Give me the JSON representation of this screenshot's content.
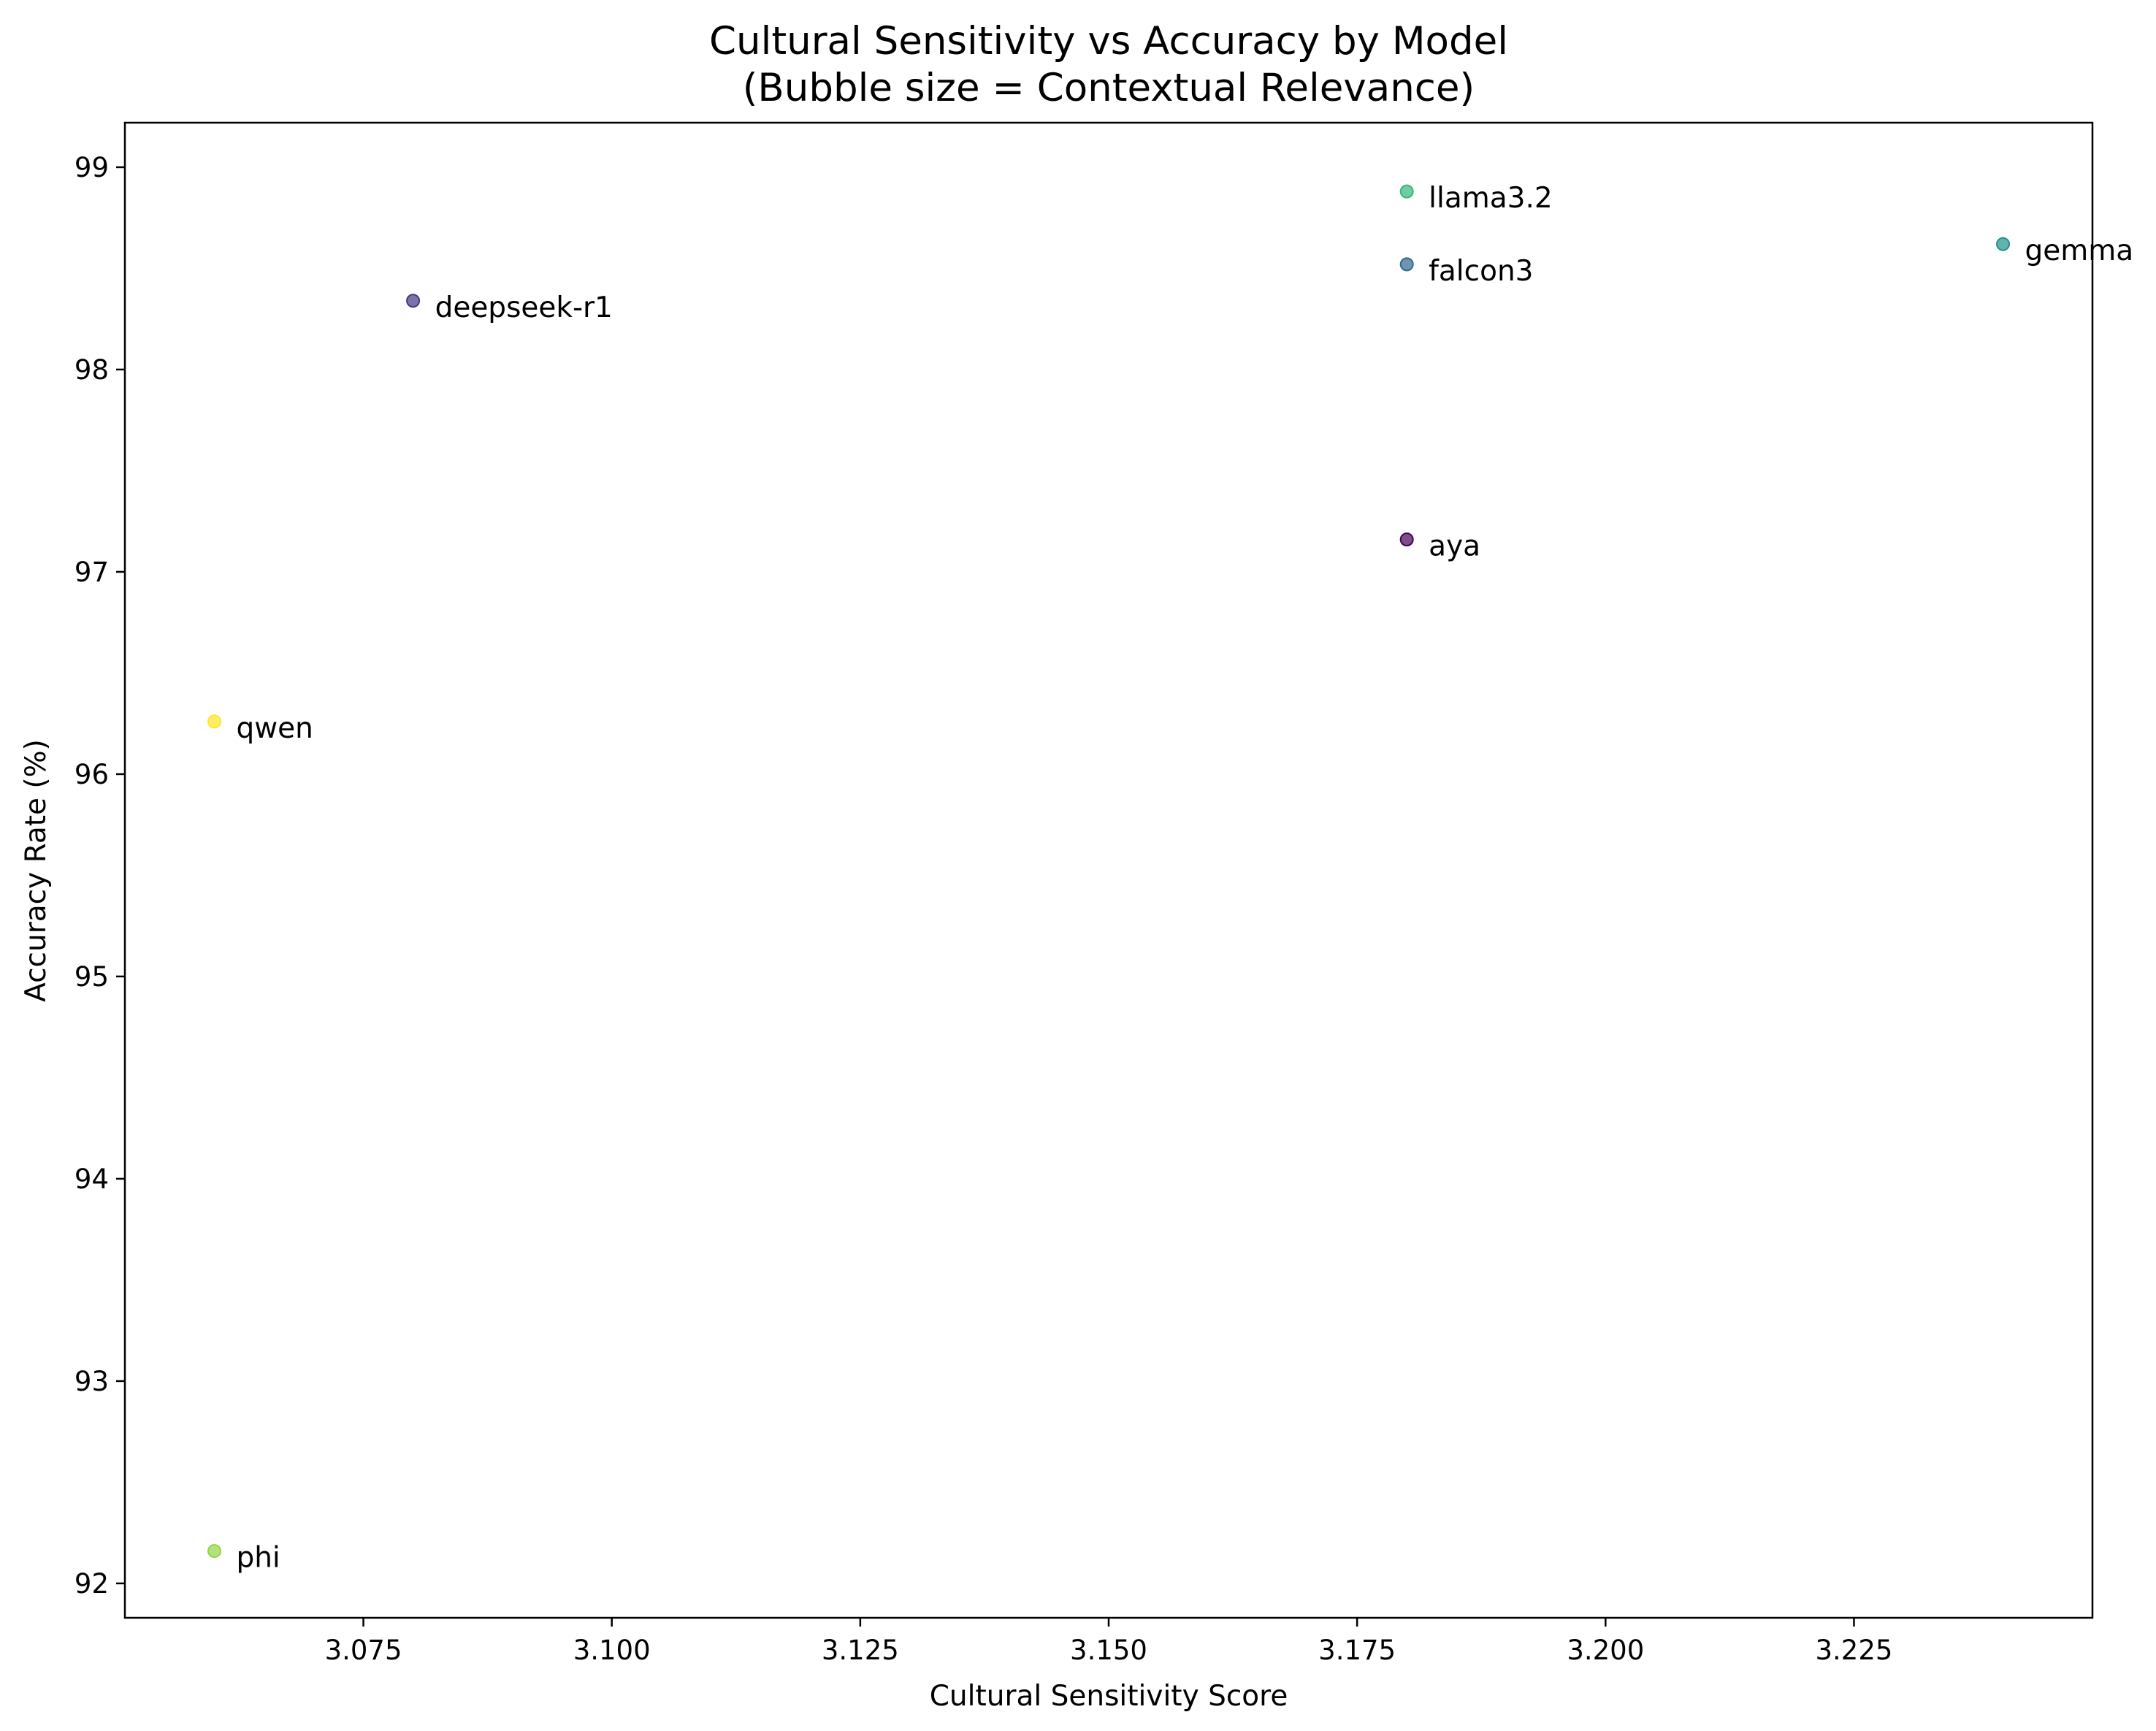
{
  "chart_data": {
    "type": "scatter",
    "title": "Cultural Sensitivity vs Accuracy by Model",
    "subtitle": "(Bubble size = Contextual Relevance)",
    "xlabel": "Cultural Sensitivity Score",
    "ylabel": "Accuracy Rate (%)",
    "xlim": [
      3.051,
      3.249
    ],
    "ylim": [
      91.83,
      99.22
    ],
    "xticks": [
      "3.075",
      "3.100",
      "3.125",
      "3.150",
      "3.175",
      "3.200",
      "3.225"
    ],
    "yticks": [
      "92",
      "93",
      "94",
      "95",
      "96",
      "97",
      "98",
      "99"
    ],
    "grid": false,
    "points": [
      {
        "label": "aya",
        "x": 3.18,
        "y": 97.16,
        "color": "#440154"
      },
      {
        "label": "deepseek-r1",
        "x": 3.08,
        "y": 98.34,
        "color": "#443983"
      },
      {
        "label": "falcon3",
        "x": 3.18,
        "y": 98.52,
        "color": "#31688e"
      },
      {
        "label": "gemma",
        "x": 3.24,
        "y": 98.62,
        "color": "#21918c"
      },
      {
        "label": "llama3.2",
        "x": 3.18,
        "y": 98.88,
        "color": "#35b779"
      },
      {
        "label": "phi",
        "x": 3.06,
        "y": 92.16,
        "color": "#90d743"
      },
      {
        "label": "qwen",
        "x": 3.06,
        "y": 96.26,
        "color": "#fde725"
      }
    ]
  }
}
